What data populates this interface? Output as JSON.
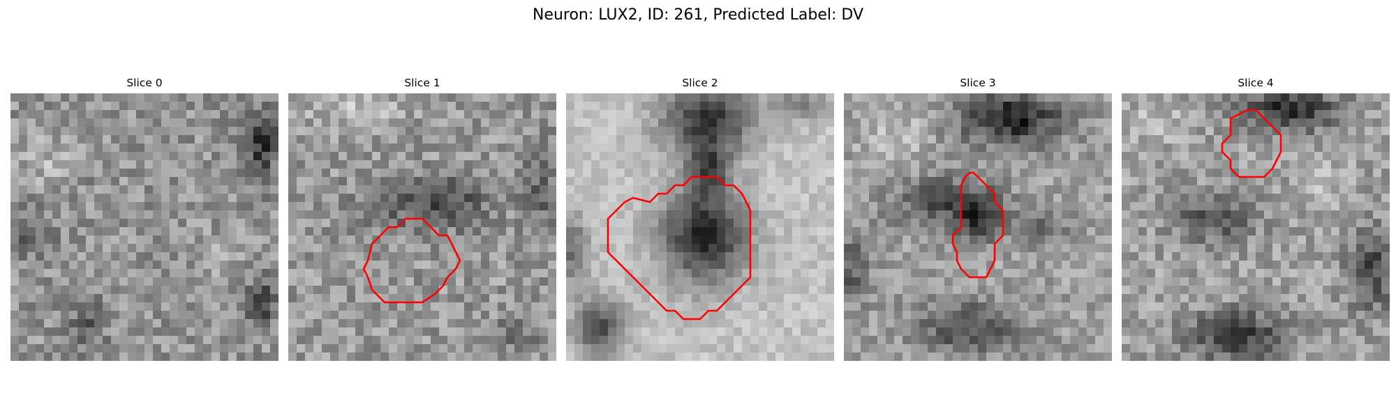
{
  "figure": {
    "title": "Neuron: LUX2, ID: 261, Predicted Label: DV"
  },
  "slices": [
    {
      "title": "Slice 0",
      "has_contour": false
    },
    {
      "title": "Slice 1",
      "has_contour": true
    },
    {
      "title": "Slice 2",
      "has_contour": true
    },
    {
      "title": "Slice 3",
      "has_contour": true
    },
    {
      "title": "Slice 4",
      "has_contour": true
    }
  ],
  "colors": {
    "background": "#ffffff",
    "contour": "#ff0000",
    "colormap": "grayscale"
  }
}
